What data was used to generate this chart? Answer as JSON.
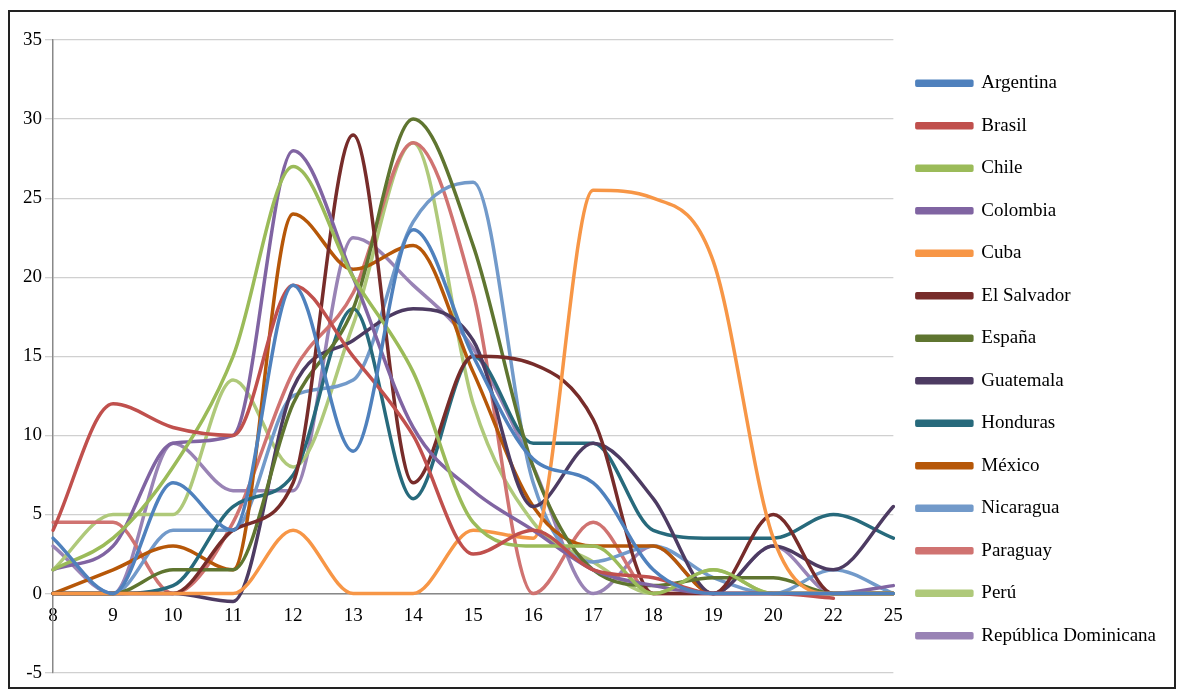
{
  "chart_data": {
    "type": "line",
    "categories": [
      "8",
      "9",
      "10",
      "11",
      "12",
      "13",
      "14",
      "15",
      "16",
      "17",
      "18",
      "19",
      "20",
      "22",
      "25"
    ],
    "ylim": [
      -5,
      35
    ],
    "yticks": [
      -5,
      0,
      5,
      10,
      15,
      20,
      25,
      30,
      35
    ],
    "grid": "y",
    "legend": "right",
    "marker": "none",
    "line_style": "solid",
    "series": [
      {
        "name": "Argentina",
        "color": "#4f81bd",
        "values": [
          3.5,
          0,
          7,
          4,
          19.5,
          9,
          23,
          15,
          8.5,
          7,
          1.5,
          0,
          0,
          0,
          0
        ]
      },
      {
        "name": "Brasil",
        "color": "#c0504d",
        "values": [
          4,
          12,
          10.5,
          10,
          19.5,
          15,
          10,
          2.5,
          4,
          1.5,
          1,
          0,
          0,
          -0.3,
          null
        ]
      },
      {
        "name": "Chile",
        "color": "#9bbb59",
        "values": [
          1.5,
          3.5,
          8,
          15,
          27,
          20,
          14,
          4.5,
          3,
          3,
          0,
          1.5,
          0,
          0,
          0
        ]
      },
      {
        "name": "Colombia",
        "color": "#8064a2",
        "values": [
          1.5,
          3,
          9.5,
          10,
          28,
          20,
          10.5,
          6.5,
          4,
          1.5,
          0.5,
          0,
          0,
          0,
          0.5
        ]
      },
      {
        "name": "Cuba",
        "color": "#f79646",
        "values": [
          0,
          0,
          0,
          0,
          4,
          0,
          0,
          4,
          3.5,
          25.5,
          25,
          21,
          3.5,
          0,
          0
        ]
      },
      {
        "name": "El Salvador",
        "color": "#772c2a",
        "values": [
          0,
          0,
          0,
          4,
          7,
          29,
          7,
          15,
          14.5,
          11,
          0,
          0,
          5,
          0,
          0
        ]
      },
      {
        "name": "España",
        "color": "#5f7530",
        "values": [
          0,
          0,
          1.5,
          1.5,
          12,
          18,
          30,
          22,
          8,
          1.5,
          0.5,
          1,
          1,
          0,
          0
        ]
      },
      {
        "name": "Guatemala",
        "color": "#4d3b62",
        "values": [
          0,
          0,
          0,
          -0.5,
          13,
          16,
          18,
          16,
          5.5,
          9.5,
          6,
          0,
          3,
          1.5,
          5.5
        ]
      },
      {
        "name": "Honduras",
        "color": "#276a7c",
        "values": [
          0,
          0,
          0.5,
          5.5,
          7.5,
          18,
          6,
          15,
          9.5,
          9.5,
          4,
          3.5,
          3.5,
          5,
          3.5
        ]
      },
      {
        "name": "México",
        "color": "#b65708",
        "values": [
          0,
          1.5,
          3,
          1.5,
          24,
          20.5,
          22,
          14,
          5.5,
          3,
          3,
          0,
          0,
          0,
          0
        ]
      },
      {
        "name": "Nicaragua",
        "color": "#729aca",
        "values": [
          0,
          0,
          4,
          4,
          12.5,
          13.5,
          23.5,
          26,
          7,
          2,
          3,
          1,
          0,
          1.5,
          0
        ]
      },
      {
        "name": "Paraguay",
        "color": "#d07371",
        "values": [
          4.5,
          4.5,
          0,
          4.5,
          14,
          19,
          28.5,
          19,
          0,
          4.5,
          0,
          0,
          0,
          0,
          0
        ]
      },
      {
        "name": "Perú",
        "color": "#afc97a",
        "values": [
          1.5,
          5,
          5,
          13.5,
          8,
          17,
          28.5,
          12,
          4.5,
          2,
          0,
          1.5,
          0,
          0,
          0
        ]
      },
      {
        "name": "República Dominicana",
        "color": "#9983b5",
        "values": [
          3,
          0,
          9.5,
          6.5,
          6.5,
          22.5,
          19.5,
          15.5,
          8,
          0,
          3,
          0,
          3,
          0,
          0
        ]
      }
    ]
  }
}
